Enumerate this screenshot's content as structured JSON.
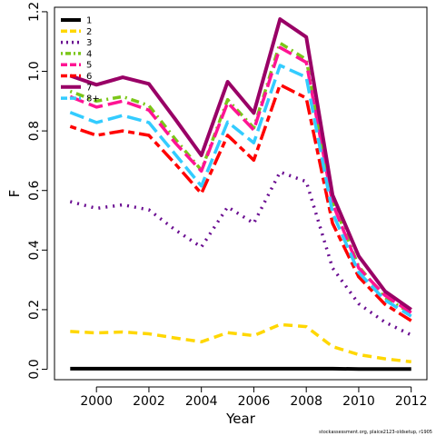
{
  "chart_data": {
    "type": "line",
    "xlabel": "Year",
    "ylabel": "F",
    "xlim": [
      1998.4,
      2012.6
    ],
    "ylim": [
      -0.035,
      1.215
    ],
    "x_ticks": [
      2000,
      2002,
      2004,
      2006,
      2008,
      2010,
      2012
    ],
    "y_ticks": [
      0.0,
      0.2,
      0.4,
      0.6,
      0.8,
      1.0,
      1.2
    ],
    "y_tick_labels": [
      "0.0",
      "0.2",
      "0.4",
      "0.6",
      "0.8",
      "1.0",
      "1.2"
    ],
    "legend_position": "top-left",
    "x": [
      1999,
      2000,
      2001,
      2002,
      2003,
      2004,
      2005,
      2006,
      2007,
      2008,
      2009,
      2010,
      2011,
      2012
    ],
    "series": [
      {
        "name": "1",
        "color": "#000000",
        "dash": "solid",
        "values": [
          0.002,
          0.002,
          0.002,
          0.002,
          0.002,
          0.002,
          0.002,
          0.002,
          0.002,
          0.002,
          0.002,
          0.001,
          0.001,
          0.001
        ]
      },
      {
        "name": "2",
        "color": "#FFD700",
        "dash": "dashed",
        "values": [
          0.127,
          0.122,
          0.125,
          0.119,
          0.105,
          0.092,
          0.123,
          0.113,
          0.15,
          0.143,
          0.076,
          0.049,
          0.035,
          0.025
        ]
      },
      {
        "name": "3",
        "color": "#6A0D91",
        "dash": "dotted",
        "values": [
          0.563,
          0.54,
          0.552,
          0.535,
          0.468,
          0.41,
          0.545,
          0.49,
          0.662,
          0.63,
          0.34,
          0.22,
          0.158,
          0.115
        ]
      },
      {
        "name": "4",
        "color": "#7BC618",
        "dash": "dotdash",
        "values": [
          0.933,
          0.9,
          0.915,
          0.885,
          0.773,
          0.668,
          0.905,
          0.81,
          1.095,
          1.04,
          0.565,
          0.345,
          0.24,
          0.188
        ]
      },
      {
        "name": "5",
        "color": "#FF1493",
        "dash": "longdash",
        "values": [
          0.915,
          0.88,
          0.9,
          0.87,
          0.76,
          0.665,
          0.895,
          0.803,
          1.08,
          1.03,
          0.557,
          0.34,
          0.248,
          0.19
        ]
      },
      {
        "name": "6",
        "color": "#FF0000",
        "dash": "twodash",
        "values": [
          0.815,
          0.785,
          0.8,
          0.785,
          0.69,
          0.59,
          0.785,
          0.702,
          0.955,
          0.91,
          0.49,
          0.31,
          0.218,
          0.163
        ]
      },
      {
        "name": "7",
        "color": "#990066",
        "dash": "solid",
        "values": [
          0.985,
          0.955,
          0.98,
          0.958,
          0.84,
          0.718,
          0.965,
          0.86,
          1.175,
          1.115,
          0.585,
          0.38,
          0.262,
          0.2
        ]
      },
      {
        "name": "8+",
        "color": "#33CCFF",
        "dash": "longdash",
        "values": [
          0.862,
          0.828,
          0.852,
          0.828,
          0.722,
          0.615,
          0.83,
          0.76,
          1.02,
          0.98,
          0.525,
          0.325,
          0.232,
          0.178
        ]
      }
    ]
  },
  "credit": "stockassessment.org, plaice2123-oldsetup, r1905"
}
